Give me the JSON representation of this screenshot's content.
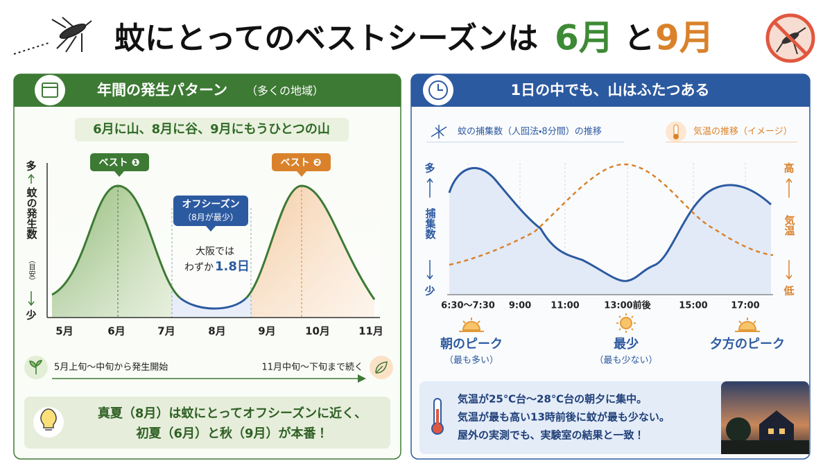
{
  "title": {
    "main": "蚊にとってのベストシーズンは",
    "month1": "6月",
    "connector": "と",
    "month2": "9月"
  },
  "left_panel": {
    "header": "年間の発生パターン",
    "header_note": "（多くの地域）",
    "subtitle": "6月に山、8月に谷、9月にもうひとつの山",
    "y_axis": {
      "top": "多",
      "label": "蚊の発生数",
      "note": "（目安）",
      "bottom": "少"
    },
    "badges": [
      "ベスト ❶",
      "ベスト ❷"
    ],
    "off_season": {
      "title": "オフシーズン",
      "note": "（8月が最少）"
    },
    "annotation": {
      "line1": "大阪では",
      "line2": "わずか",
      "highlight": "1.8日"
    },
    "months": [
      "5月",
      "6月",
      "7月",
      "8月",
      "9月",
      "10月",
      "11月"
    ],
    "timeline": {
      "start": "5月上旬～中旬から発生開始",
      "end": "11月中旬～下旬まで続く"
    },
    "note": [
      "真夏（8月）は蚊にとってオフシーズンに近く、",
      "初夏（6月）と秋（9月）が本番！"
    ]
  },
  "right_panel": {
    "header": "1日の中でも、山はふたつある",
    "legend": [
      "蚊の捕集数（人囮法・8分間）の推移",
      "気温の推移（イメージ）"
    ],
    "left_axis": {
      "top": "多",
      "label": "捕集数",
      "bottom": "少"
    },
    "right_axis": {
      "top": "高",
      "label": "気温",
      "bottom": "低"
    },
    "times": [
      "6:30～7:30",
      "9:00",
      "11:00",
      "13:00前後",
      "15:00",
      "17:00"
    ],
    "peaks": [
      {
        "label": "朝のピーク",
        "note": "（最も多い）"
      },
      {
        "label": "最少",
        "note": "（最も少ない）"
      },
      {
        "label": "夕方のピーク"
      }
    ],
    "note": [
      "気温が25℃台～28℃台の朝夕に集中。",
      "気温が最も高い13時前後に蚊が最も少ない。",
      "屋外の実測でも、実験室の結果と一致！"
    ]
  }
}
